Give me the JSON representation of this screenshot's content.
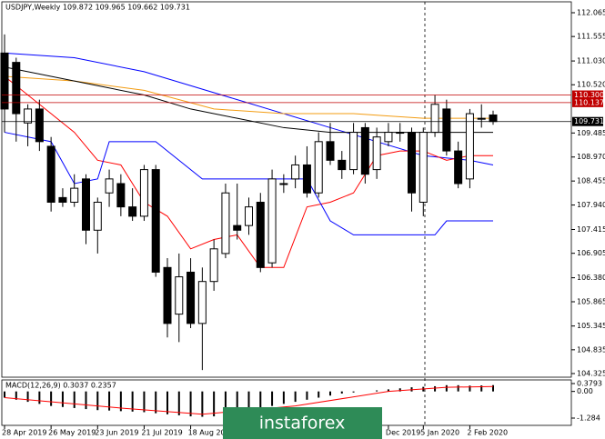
{
  "chart_data": {
    "type": "candlestick",
    "title": "USDJPY,Weekly  109.872 109.965 109.662 109.731",
    "ylim": [
      104.325,
      112.065
    ],
    "yticks": [
      112.065,
      111.555,
      {
        "value": 111.03,
        "label": "111.030"
      },
      {
        "value": 110.52,
        "label": "110.520"
      },
      109.485,
      {
        "value": 108.97,
        "label": "108.970"
      },
      108.455,
      {
        "value": 107.94,
        "label": "107.940"
      },
      107.415,
      106.905,
      {
        "value": 106.38,
        "label": "106.380"
      },
      105.865,
      105.345,
      104.835,
      104.325
    ],
    "levels": [
      {
        "value": 110.3,
        "label": "110.300",
        "color": "#c00000"
      },
      {
        "value": 110.137,
        "label": "110.137",
        "color": "#c00000"
      },
      {
        "value": 109.731,
        "label": "109.731",
        "color": "#000000"
      }
    ],
    "candles": [
      {
        "open": 111.2,
        "high": 111.6,
        "low": 109.5,
        "close": 110.0
      },
      {
        "open": 111.0,
        "high": 111.1,
        "low": 109.3,
        "close": 109.9
      },
      {
        "open": 109.7,
        "high": 110.1,
        "low": 109.2,
        "close": 110.0
      },
      {
        "open": 110.0,
        "high": 110.2,
        "low": 109.1,
        "close": 109.3
      },
      {
        "open": 109.2,
        "high": 109.4,
        "low": 107.8,
        "close": 108.0
      },
      {
        "open": 108.1,
        "high": 108.3,
        "low": 107.9,
        "close": 108.0
      },
      {
        "open": 108.0,
        "high": 108.6,
        "low": 107.9,
        "close": 108.3
      },
      {
        "open": 108.5,
        "high": 108.6,
        "low": 107.1,
        "close": 107.4
      },
      {
        "open": 107.4,
        "high": 108.1,
        "low": 106.9,
        "close": 108.0
      },
      {
        "open": 108.2,
        "high": 108.7,
        "low": 107.9,
        "close": 108.5
      },
      {
        "open": 108.4,
        "high": 108.6,
        "low": 107.7,
        "close": 107.9
      },
      {
        "open": 107.9,
        "high": 108.3,
        "low": 107.6,
        "close": 107.7
      },
      {
        "open": 107.7,
        "high": 108.8,
        "low": 107.6,
        "close": 108.7
      },
      {
        "open": 108.7,
        "high": 108.8,
        "low": 106.4,
        "close": 106.5
      },
      {
        "open": 106.6,
        "high": 106.8,
        "low": 105.1,
        "close": 105.4
      },
      {
        "open": 105.6,
        "high": 106.9,
        "low": 105.0,
        "close": 106.4
      },
      {
        "open": 106.5,
        "high": 106.8,
        "low": 105.3,
        "close": 105.4
      },
      {
        "open": 105.4,
        "high": 106.6,
        "low": 104.4,
        "close": 106.3
      },
      {
        "open": 106.3,
        "high": 107.2,
        "low": 106.1,
        "close": 107.0
      },
      {
        "open": 106.9,
        "high": 108.4,
        "low": 106.8,
        "close": 108.2
      },
      {
        "open": 107.5,
        "high": 108.4,
        "low": 107.2,
        "close": 107.4
      },
      {
        "open": 107.5,
        "high": 108.1,
        "low": 107.3,
        "close": 107.9
      },
      {
        "open": 108.0,
        "high": 108.2,
        "low": 106.5,
        "close": 106.6
      },
      {
        "open": 106.7,
        "high": 108.7,
        "low": 106.6,
        "close": 108.5
      },
      {
        "open": 108.4,
        "high": 108.6,
        "low": 108.2,
        "close": 108.4
      },
      {
        "open": 108.5,
        "high": 109.0,
        "low": 108.3,
        "close": 108.8
      },
      {
        "open": 108.8,
        "high": 109.2,
        "low": 108.1,
        "close": 108.2
      },
      {
        "open": 108.2,
        "high": 109.5,
        "low": 108.1,
        "close": 109.3
      },
      {
        "open": 109.3,
        "high": 109.7,
        "low": 108.8,
        "close": 108.9
      },
      {
        "open": 108.9,
        "high": 109.1,
        "low": 108.5,
        "close": 108.7
      },
      {
        "open": 108.7,
        "high": 109.7,
        "low": 108.6,
        "close": 109.5
      },
      {
        "open": 109.6,
        "high": 109.7,
        "low": 108.4,
        "close": 108.6
      },
      {
        "open": 108.7,
        "high": 109.6,
        "low": 108.5,
        "close": 109.4
      },
      {
        "open": 109.3,
        "high": 109.7,
        "low": 109.2,
        "close": 109.5
      },
      {
        "open": 109.5,
        "high": 109.7,
        "low": 109.3,
        "close": 109.5
      },
      {
        "open": 109.5,
        "high": 109.6,
        "low": 107.8,
        "close": 108.2
      },
      {
        "open": 108.0,
        "high": 109.6,
        "low": 107.7,
        "close": 109.5
      },
      {
        "open": 109.5,
        "high": 110.3,
        "low": 109.4,
        "close": 110.1
      },
      {
        "open": 110.0,
        "high": 110.2,
        "low": 109.0,
        "close": 109.1
      },
      {
        "open": 109.1,
        "high": 109.3,
        "low": 108.3,
        "close": 108.4
      },
      {
        "open": 108.5,
        "high": 110.0,
        "low": 108.3,
        "close": 109.9
      },
      {
        "open": 109.8,
        "high": 110.1,
        "low": 109.6,
        "close": 109.8
      },
      {
        "open": 109.872,
        "high": 109.965,
        "low": 109.662,
        "close": 109.731
      }
    ],
    "lines": [
      {
        "color": "#0000ff",
        "x": [
          0,
          6,
          12,
          16,
          20,
          24,
          28,
          32,
          36,
          40,
          42
        ],
        "values": [
          111.2,
          111.1,
          110.8,
          110.5,
          110.2,
          109.9,
          109.6,
          109.3,
          109.0,
          108.9,
          108.8
        ]
      },
      {
        "color": "#f39c12",
        "x": [
          0,
          6,
          12,
          18,
          24,
          30,
          36,
          40,
          42
        ],
        "values": [
          110.7,
          110.6,
          110.4,
          110.0,
          109.9,
          109.9,
          109.8,
          109.8,
          109.8
        ]
      },
      {
        "color": "#000000",
        "x": [
          0,
          4,
          8,
          12,
          16,
          20,
          24,
          28,
          32,
          36,
          40,
          42
        ],
        "values": [
          110.9,
          110.7,
          110.5,
          110.3,
          110.0,
          109.8,
          109.6,
          109.5,
          109.5,
          109.5,
          109.5,
          109.5
        ]
      },
      {
        "color": "#ff0000",
        "x": [
          0,
          4,
          6,
          8,
          10,
          12,
          14,
          16,
          18,
          20,
          22,
          24,
          26,
          28,
          30,
          32,
          34,
          36,
          38,
          40,
          42
        ],
        "values": [
          110.7,
          109.9,
          109.5,
          108.9,
          108.8,
          108.0,
          107.7,
          107.0,
          107.2,
          107.3,
          106.6,
          106.6,
          107.9,
          108.0,
          108.2,
          109.0,
          109.1,
          109.1,
          108.9,
          109.0,
          109.0
        ]
      },
      {
        "color": "#0000ff",
        "x": [
          0,
          4,
          6,
          8,
          9,
          13,
          15,
          17,
          22,
          26,
          28,
          30,
          35,
          37,
          38,
          42
        ],
        "values": [
          109.5,
          109.3,
          108.4,
          108.5,
          109.3,
          109.3,
          108.9,
          108.5,
          108.5,
          108.5,
          107.6,
          107.3,
          107.3,
          107.3,
          107.6,
          107.6
        ]
      }
    ],
    "xlabels": [
      {
        "index": 0,
        "label": "28 Apr 2019"
      },
      {
        "index": 4,
        "label": "26 May 2019"
      },
      {
        "index": 8,
        "label": "23 Jun 2019"
      },
      {
        "index": 12,
        "label": "21 Jul 2019"
      },
      {
        "index": 16,
        "label": "18 Aug 20"
      },
      {
        "index": 33,
        "label": "Dec 2019"
      },
      {
        "index": 36,
        "label": "5 Jan 2020"
      },
      {
        "index": 40,
        "label": "2 Feb 2020"
      }
    ],
    "macd": {
      "title": "MACD(12,26,9) 0.3037 0.2357",
      "y2lim": [
        -1.284,
        0.3793
      ],
      "y2ticks": [
        0.3793,
        {
          "value": 0,
          "label": "0.00"
        },
        -1.284
      ],
      "values": [
        -0.3,
        -0.4,
        -0.5,
        -0.6,
        -0.7,
        -0.75,
        -0.8,
        -0.85,
        -0.9,
        -0.92,
        -0.95,
        -0.97,
        -1.0,
        -1.05,
        -1.1,
        -1.15,
        -1.2,
        -1.22,
        -1.2,
        -1.1,
        -1.0,
        -0.9,
        -0.8,
        -0.7,
        -0.6,
        -0.5,
        -0.4,
        -0.3,
        -0.2,
        -0.1,
        -0.05,
        0.0,
        0.05,
        0.1,
        0.15,
        0.2,
        0.22,
        0.25,
        0.3,
        0.3,
        0.28,
        0.29,
        0.3037
      ],
      "signal": {
        "color": "#ff0000",
        "x": [
          0,
          10,
          17,
          25,
          33,
          38,
          42
        ],
        "values": [
          -0.3,
          -0.8,
          -1.1,
          -0.7,
          0.0,
          0.2,
          0.2357
        ]
      }
    },
    "watermark": "instaforex"
  }
}
